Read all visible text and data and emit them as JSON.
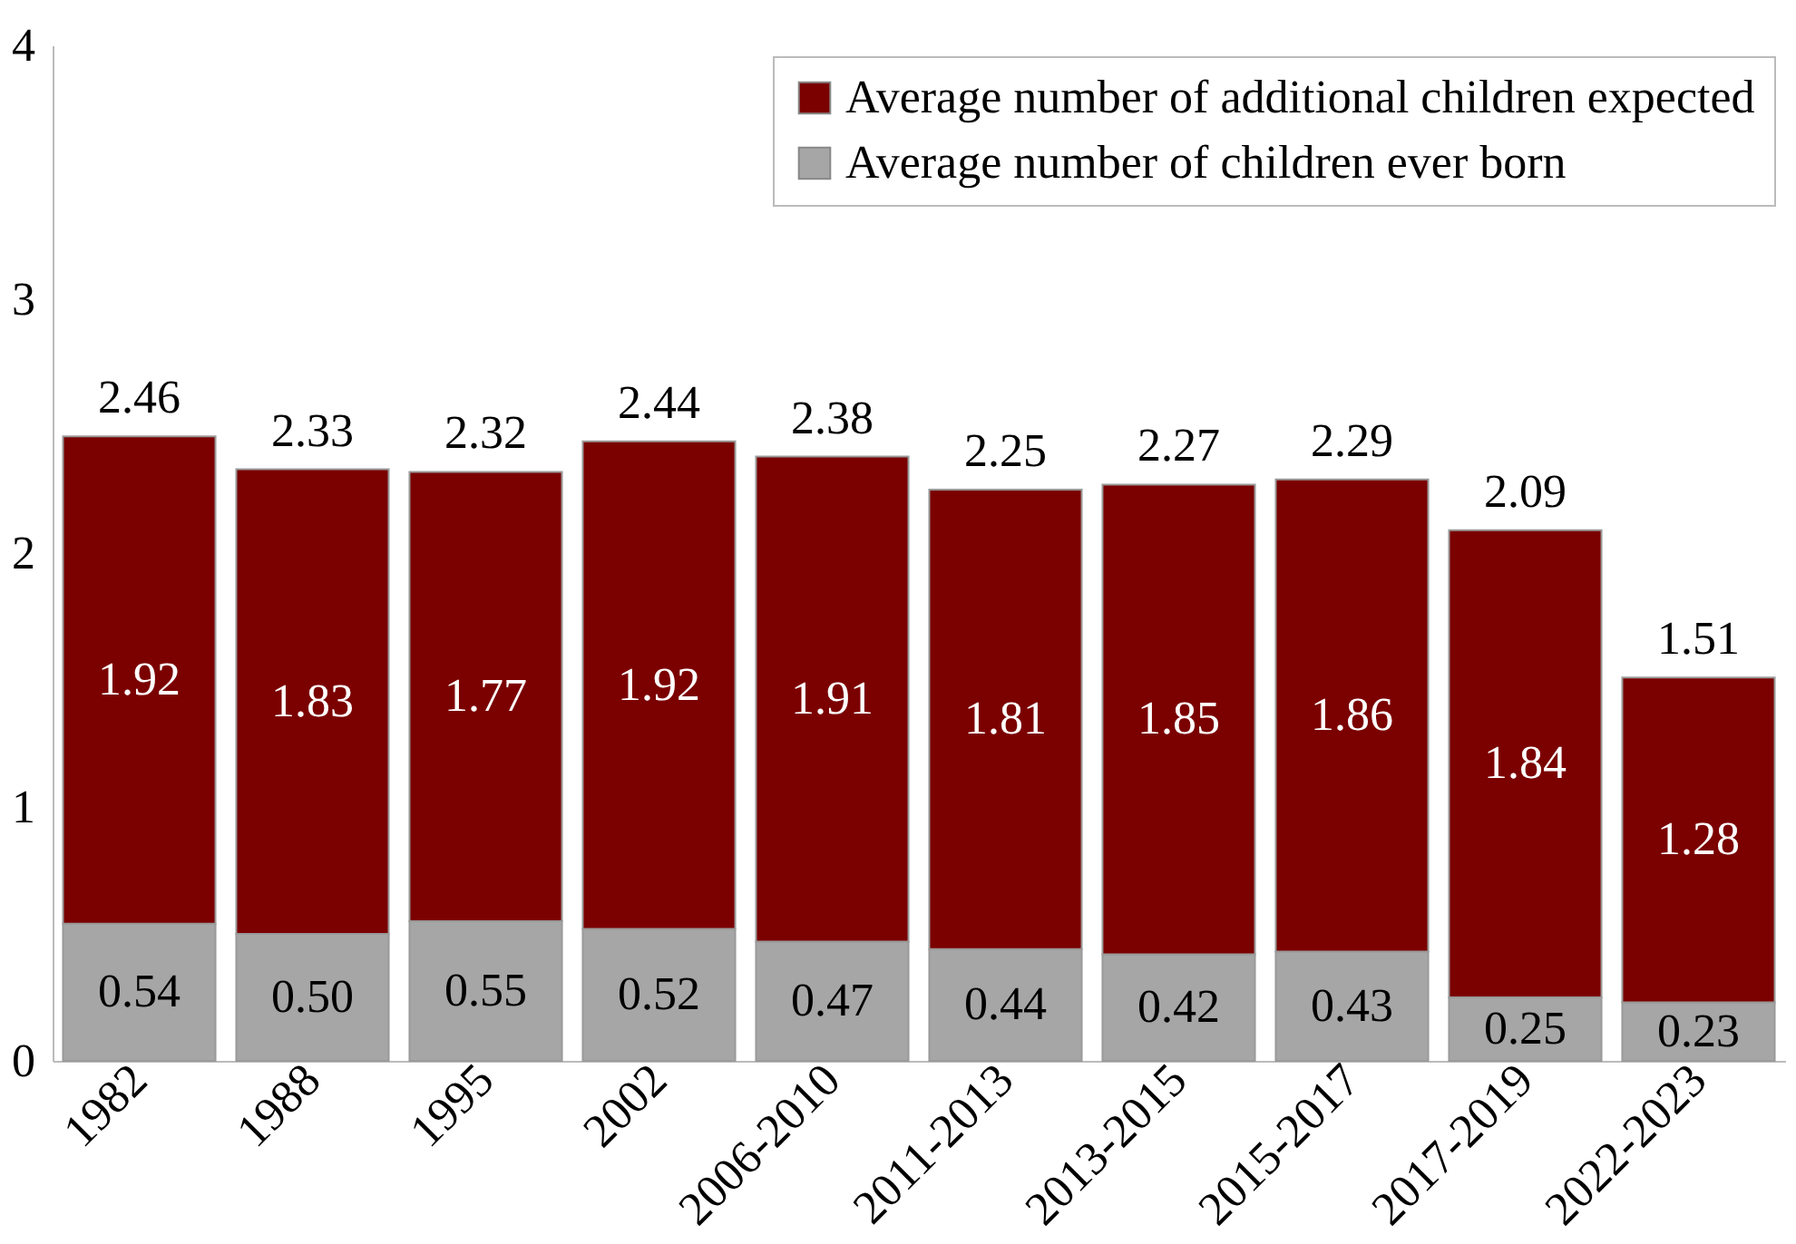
{
  "chart_data": {
    "type": "bar",
    "stacked": true,
    "categories": [
      "1982",
      "1988",
      "1995",
      "2002",
      "2006-2010",
      "2011-2013",
      "2013-2015",
      "2015-2017",
      "2017-2019",
      "2022-2023"
    ],
    "series": [
      {
        "name": "Average number of children ever born",
        "color": "#a6a6a6",
        "values": [
          0.54,
          0.5,
          0.55,
          0.52,
          0.47,
          0.44,
          0.42,
          0.43,
          0.25,
          0.23
        ],
        "value_labels": [
          "0.54",
          "0.50",
          "0.55",
          "0.52",
          "0.47",
          "0.44",
          "0.42",
          "0.43",
          "0.25",
          "0.23"
        ]
      },
      {
        "name": "Average number of additional children expected",
        "color": "#7b0000",
        "values": [
          1.92,
          1.83,
          1.77,
          1.92,
          1.91,
          1.81,
          1.85,
          1.86,
          1.84,
          1.28
        ],
        "value_labels": [
          "1.92",
          "1.83",
          "1.77",
          "1.92",
          "1.91",
          "1.81",
          "1.85",
          "1.86",
          "1.84",
          "1.28"
        ]
      }
    ],
    "totals": [
      "2.46",
      "2.33",
      "2.32",
      "2.44",
      "2.38",
      "2.25",
      "2.27",
      "2.29",
      "2.09",
      "1.51"
    ],
    "ylim": [
      0,
      4
    ],
    "yticks": [
      0,
      1,
      2,
      3,
      4
    ],
    "grid": false,
    "legend": "top right"
  }
}
